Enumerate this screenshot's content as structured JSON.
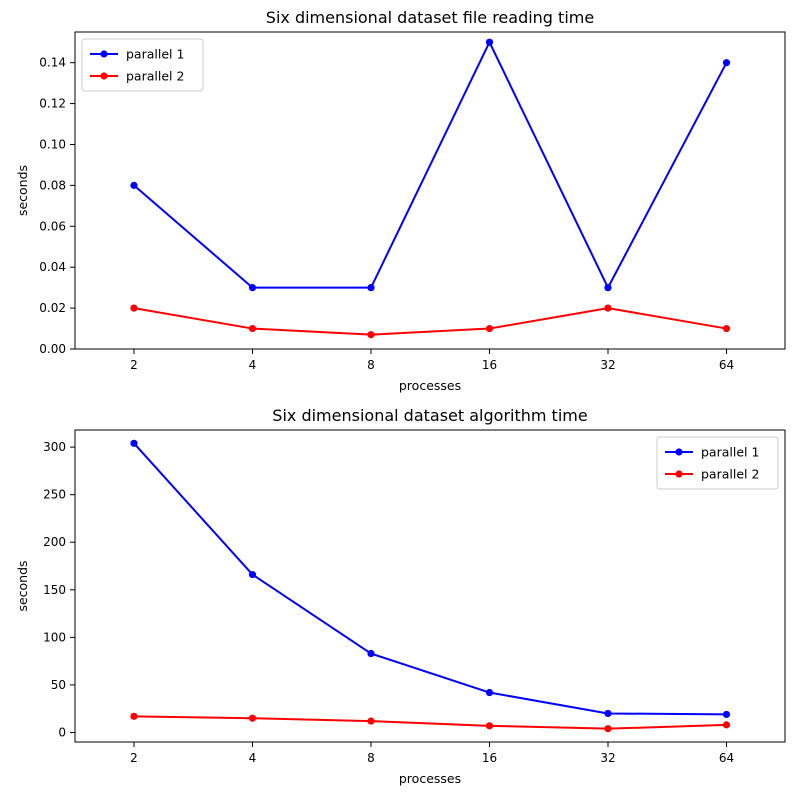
{
  "chart_data": [
    {
      "type": "line",
      "title": "Six dimensional dataset file reading time",
      "xlabel": "processes",
      "ylabel": "seconds",
      "categories": [
        "2",
        "4",
        "8",
        "16",
        "32",
        "64"
      ],
      "ylim": [
        0,
        0.155
      ],
      "yticks": [
        "0.00",
        "0.02",
        "0.04",
        "0.06",
        "0.08",
        "0.10",
        "0.12",
        "0.14"
      ],
      "legend": "top-left",
      "grid": false,
      "series": [
        {
          "name": "parallel 1",
          "color": "#0000ff",
          "values": [
            0.08,
            0.03,
            0.03,
            0.15,
            0.03,
            0.14
          ]
        },
        {
          "name": "parallel 2",
          "color": "#ff0000",
          "values": [
            0.02,
            0.01,
            0.007,
            0.01,
            0.02,
            0.01
          ]
        }
      ]
    },
    {
      "type": "line",
      "title": "Six dimensional dataset algorithm time",
      "xlabel": "processes",
      "ylabel": "seconds",
      "categories": [
        "2",
        "4",
        "8",
        "16",
        "32",
        "64"
      ],
      "ylim": [
        -10,
        318
      ],
      "yticks": [
        "0",
        "50",
        "100",
        "150",
        "200",
        "250",
        "300"
      ],
      "legend": "top-right",
      "grid": false,
      "series": [
        {
          "name": "parallel 1",
          "color": "#0000ff",
          "values": [
            304,
            166,
            83,
            42,
            20,
            19
          ]
        },
        {
          "name": "parallel 2",
          "color": "#ff0000",
          "values": [
            17,
            15,
            12,
            7,
            4,
            8
          ]
        }
      ]
    }
  ]
}
